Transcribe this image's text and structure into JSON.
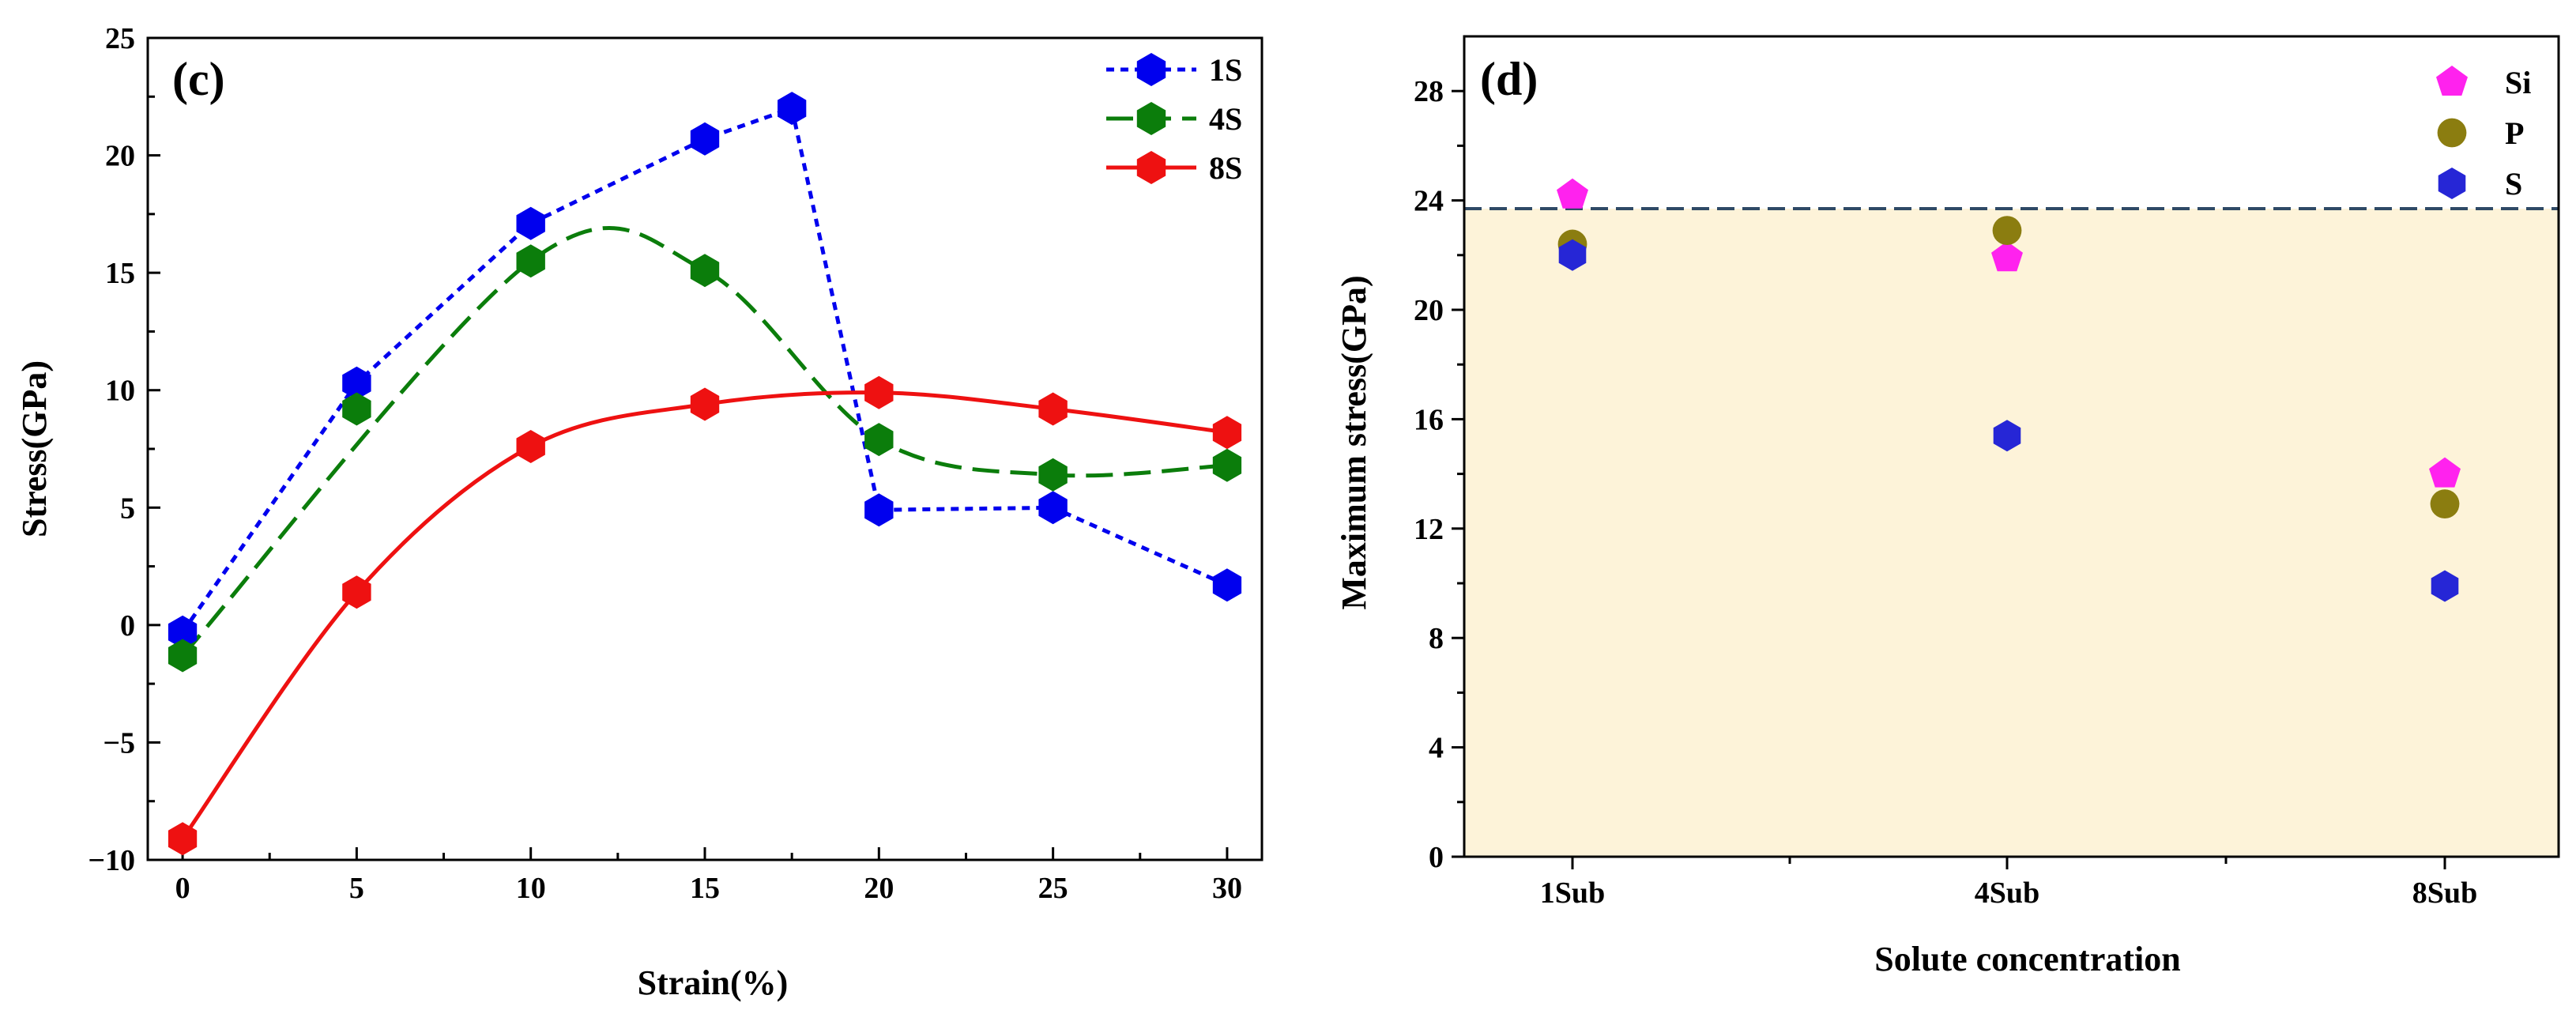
{
  "chart_data": [
    {
      "panel": "(c)",
      "type": "line",
      "xlabel": "Strain(%)",
      "ylabel": "Stress(GPa)",
      "xlim": [
        -1,
        31
      ],
      "ylim": [
        -10,
        25
      ],
      "xticks": [
        0,
        5,
        10,
        15,
        20,
        25,
        30
      ],
      "xtick_labels": [
        "0",
        "5",
        "10",
        "15",
        "20",
        "25",
        "30"
      ],
      "yticks": [
        -10,
        -5,
        0,
        5,
        10,
        15,
        20,
        25
      ],
      "ytick_labels": [
        "−10",
        "−5",
        "0",
        "5",
        "10",
        "15",
        "20",
        "25"
      ],
      "legend_position": "top-right",
      "series": [
        {
          "name": "1S",
          "color": "#0000ee",
          "line_style": "dotted",
          "marker": "hexagon",
          "smooth": false,
          "x": [
            0,
            5,
            10,
            15,
            17.5,
            20,
            25,
            30
          ],
          "y": [
            -0.3,
            10.3,
            17.1,
            20.7,
            22.0,
            4.9,
            5.0,
            1.7
          ]
        },
        {
          "name": "4S",
          "color": "#0b7d0b",
          "line_style": "dashed",
          "marker": "hexagon",
          "smooth": true,
          "x": [
            0,
            10,
            15,
            20,
            25,
            30
          ],
          "y": [
            -1.3,
            15.5,
            15.1,
            7.9,
            6.4,
            6.8
          ],
          "marker_x": [
            0,
            5,
            10,
            15,
            20,
            25,
            30
          ],
          "marker_y": [
            -1.3,
            9.2,
            15.5,
            15.1,
            7.9,
            6.4,
            6.8
          ]
        },
        {
          "name": "8S",
          "color": "#ee1111",
          "line_style": "solid",
          "marker": "hexagon",
          "smooth": true,
          "x": [
            0,
            5,
            10,
            15,
            20,
            25,
            30
          ],
          "y": [
            -9.1,
            1.4,
            7.6,
            9.4,
            9.9,
            9.2,
            8.2
          ]
        }
      ]
    },
    {
      "panel": "(d)",
      "type": "scatter",
      "xlabel": "Solute concentration",
      "ylabel": "Maximum stress(GPa)",
      "categories": [
        "1Sub",
        "4Sub",
        "8Sub"
      ],
      "ylim": [
        0,
        30
      ],
      "yticks": [
        0,
        4,
        8,
        12,
        16,
        20,
        24,
        28
      ],
      "ytick_labels": [
        "0",
        "4",
        "8",
        "12",
        "16",
        "20",
        "24",
        "28"
      ],
      "reference_line": 23.7,
      "shaded_region_color": "#fdf3d9",
      "legend_position": "top-right",
      "series": [
        {
          "name": "Si",
          "color": "#ff22ee",
          "marker": "pentagon",
          "values": [
            24.2,
            21.9,
            14.0
          ]
        },
        {
          "name": "P",
          "color": "#8b7d10",
          "marker": "circle",
          "values": [
            22.4,
            22.9,
            12.9
          ]
        },
        {
          "name": "S",
          "color": "#2626d6",
          "marker": "hexagon",
          "values": [
            22.0,
            15.4,
            9.9
          ]
        }
      ]
    }
  ]
}
